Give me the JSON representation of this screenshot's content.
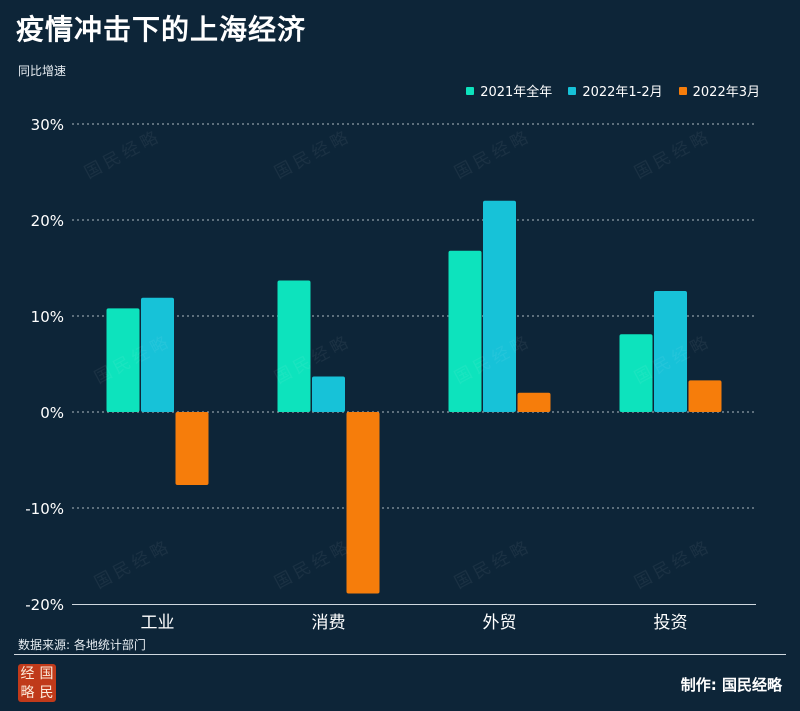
{
  "header": {
    "title": "疫情冲击下的上海经济",
    "subtitle": "同比增速"
  },
  "legend": [
    {
      "label": "2021年全年",
      "color": "#0de3bd"
    },
    {
      "label": "2022年1-2月",
      "color": "#17c2d8"
    },
    {
      "label": "2022年3月",
      "color": "#f67d0b"
    }
  ],
  "footer": {
    "source": "数据来源: 各地统计部门",
    "credit": "制作: 国民经略",
    "logo_chars": [
      "经",
      "国",
      "略",
      "民"
    ],
    "watermark": "国民经略"
  },
  "colors": {
    "background": "#0d2538",
    "grid": "#c9d3da",
    "axis": "#cfd8df"
  },
  "chart_data": {
    "type": "bar",
    "categories": [
      "工业",
      "消费",
      "外贸",
      "投资"
    ],
    "series": [
      {
        "name": "2021年全年",
        "values": [
          10.8,
          13.7,
          16.8,
          8.1
        ],
        "color": "#0de3bd"
      },
      {
        "name": "2022年1-2月",
        "values": [
          11.9,
          3.7,
          22.0,
          12.6
        ],
        "color": "#17c2d8"
      },
      {
        "name": "2022年3月",
        "values": [
          -7.6,
          -18.9,
          2.0,
          3.3
        ],
        "color": "#f67d0b"
      }
    ],
    "yticks": [
      "30%",
      "20%",
      "10%",
      "0%",
      "-10%",
      "-20%"
    ],
    "ytick_values": [
      30,
      20,
      10,
      0,
      -10,
      -20
    ],
    "ylim": [
      -20,
      30
    ],
    "ylabel": "同比增速",
    "xlabel": "",
    "grid": true,
    "legend_position": "top-right"
  }
}
